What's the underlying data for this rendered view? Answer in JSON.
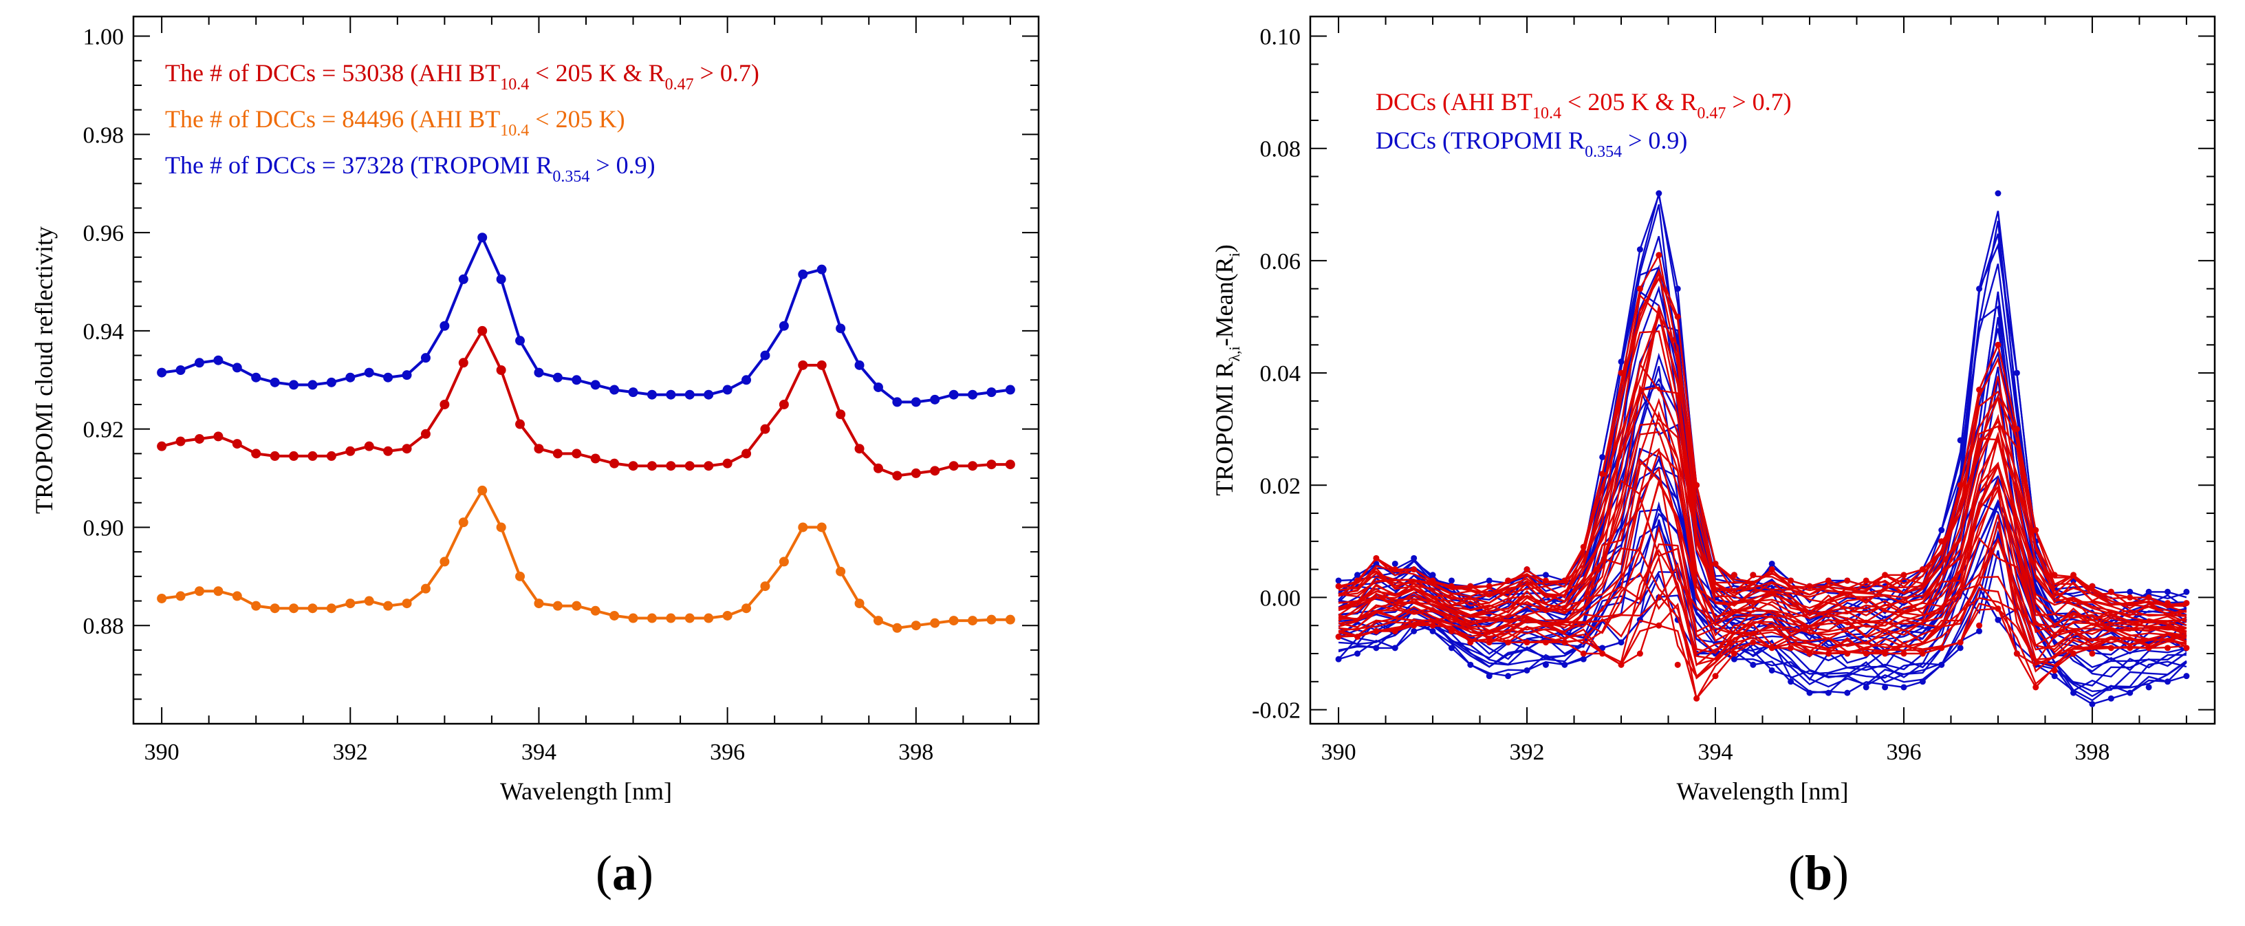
{
  "chart_data": [
    {
      "type": "line",
      "panel_label": "a",
      "xlabel": "Wavelength [nm]",
      "ylabel": "TROPOMI cloud reflectivity",
      "xlim": [
        389.7,
        399.3
      ],
      "ylim": [
        0.86,
        1.004
      ],
      "xticks": [
        "390",
        "392",
        "394",
        "396",
        "398"
      ],
      "yticks": [
        "0.88",
        "0.90",
        "0.92",
        "0.94",
        "0.96",
        "0.98",
        "1.00"
      ],
      "x": [
        390.0,
        390.2,
        390.4,
        390.6,
        390.8,
        391.0,
        391.2,
        391.4,
        391.6,
        391.8,
        392.0,
        392.2,
        392.4,
        392.6,
        392.8,
        393.0,
        393.2,
        393.4,
        393.6,
        393.8,
        394.0,
        394.2,
        394.4,
        394.6,
        394.8,
        395.0,
        395.2,
        395.4,
        395.6,
        395.8,
        396.0,
        396.2,
        396.4,
        396.6,
        396.8,
        397.0,
        397.2,
        397.4,
        397.6,
        397.8,
        398.0,
        398.2,
        398.4,
        398.6,
        398.8,
        399.0
      ],
      "series": [
        {
          "name": "TROPOMI R0.354 > 0.9",
          "color": "#0a0ac8",
          "values": [
            0.9315,
            0.932,
            0.9335,
            0.934,
            0.9325,
            0.9305,
            0.9295,
            0.929,
            0.929,
            0.9295,
            0.9305,
            0.9315,
            0.9305,
            0.931,
            0.9345,
            0.941,
            0.9505,
            0.959,
            0.9505,
            0.938,
            0.9315,
            0.9305,
            0.93,
            0.929,
            0.928,
            0.9275,
            0.927,
            0.927,
            0.927,
            0.927,
            0.928,
            0.93,
            0.935,
            0.941,
            0.9515,
            0.9525,
            0.9405,
            0.933,
            0.9285,
            0.9255,
            0.9255,
            0.926,
            0.927,
            0.927,
            0.9275,
            0.928
          ]
        },
        {
          "name": "AHI BT10.4 < 205 K & R0.47 > 0.7",
          "color": "#cc0000",
          "values": [
            0.9165,
            0.9175,
            0.918,
            0.9185,
            0.917,
            0.915,
            0.9145,
            0.9145,
            0.9145,
            0.9145,
            0.9155,
            0.9165,
            0.9155,
            0.916,
            0.919,
            0.925,
            0.9335,
            0.94,
            0.932,
            0.921,
            0.916,
            0.915,
            0.915,
            0.914,
            0.913,
            0.9125,
            0.9125,
            0.9125,
            0.9125,
            0.9125,
            0.913,
            0.915,
            0.92,
            0.925,
            0.933,
            0.933,
            0.923,
            0.916,
            0.912,
            0.9105,
            0.911,
            0.9115,
            0.9125,
            0.9125,
            0.9128,
            0.9128
          ]
        },
        {
          "name": "AHI BT10.4 < 205 K",
          "color": "#ef6c0a",
          "values": [
            0.8855,
            0.886,
            0.887,
            0.887,
            0.886,
            0.884,
            0.8835,
            0.8835,
            0.8835,
            0.8835,
            0.8845,
            0.885,
            0.884,
            0.8845,
            0.8875,
            0.893,
            0.901,
            0.9075,
            0.9,
            0.89,
            0.8845,
            0.884,
            0.884,
            0.883,
            0.882,
            0.8815,
            0.8815,
            0.8815,
            0.8815,
            0.8815,
            0.882,
            0.8835,
            0.888,
            0.893,
            0.9,
            0.9,
            0.891,
            0.8845,
            0.881,
            0.8795,
            0.88,
            0.8805,
            0.881,
            0.881,
            0.8812,
            0.8812
          ]
        }
      ],
      "legend": [
        {
          "text": "The # of DCCs = 53038 (AHI BT",
          "sub1": "10.4",
          "mid": " < 205 K & R",
          "sub2": "0.47",
          "end": " > 0.7)",
          "color": "#cc0000"
        },
        {
          "text": "The # of DCCs = 84496 (AHI BT",
          "sub1": "10.4",
          "mid": " < 205 K)",
          "sub2": "",
          "end": "",
          "color": "#ef6c0a"
        },
        {
          "text": "The # of DCCs = 37328 (TROPOMI R",
          "sub1": "0.354",
          "mid": " > 0.9)",
          "sub2": "",
          "end": "",
          "color": "#0a0ac8"
        }
      ],
      "legend_position": "top-left"
    },
    {
      "type": "line",
      "panel_label": "b",
      "xlabel": "Wavelength [nm]",
      "ylabel_main": "TROPOMI R",
      "ylabel_sub": "λ,i",
      "ylabel_mid": "-Mean(R",
      "ylabel_sub2": "i",
      "ylabel_end": ")",
      "xlim": [
        389.7,
        399.3
      ],
      "ylim": [
        -0.0225,
        0.1035
      ],
      "xticks": [
        "390",
        "392",
        "394",
        "396",
        "398"
      ],
      "yticks": [
        "-0.02",
        "0.00",
        "0.02",
        "0.04",
        "0.06",
        "0.08",
        "0.10"
      ],
      "x": [
        390.0,
        390.2,
        390.4,
        390.6,
        390.8,
        391.0,
        391.2,
        391.4,
        391.6,
        391.8,
        392.0,
        392.2,
        392.4,
        392.6,
        392.8,
        393.0,
        393.2,
        393.4,
        393.6,
        393.8,
        394.0,
        394.2,
        394.4,
        394.6,
        394.8,
        395.0,
        395.2,
        395.4,
        395.6,
        395.8,
        396.0,
        396.2,
        396.4,
        396.6,
        396.8,
        397.0,
        397.2,
        397.4,
        397.6,
        397.8,
        398.0,
        398.2,
        398.4,
        398.6,
        398.8,
        399.0
      ],
      "series": [
        {
          "name": "DCCs (TROPOMI R0.354 > 0.9)",
          "color": "#0a0ac8",
          "mode": "envelope",
          "upper": [
            0.003,
            0.004,
            0.006,
            0.006,
            0.007,
            0.004,
            0.003,
            0.002,
            0.003,
            0.003,
            0.005,
            0.004,
            0.003,
            0.008,
            0.025,
            0.042,
            0.062,
            0.072,
            0.055,
            0.02,
            0.006,
            0.004,
            0.004,
            0.006,
            0.003,
            0.002,
            0.003,
            0.003,
            0.002,
            0.002,
            0.003,
            0.005,
            0.012,
            0.028,
            0.055,
            0.072,
            0.04,
            0.01,
            0.002,
            0.003,
            0.002,
            0.001,
            0.001,
            0.001,
            0.001,
            0.001
          ],
          "lower": [
            -0.011,
            -0.01,
            -0.009,
            -0.009,
            -0.006,
            -0.006,
            -0.009,
            -0.012,
            -0.014,
            -0.014,
            -0.013,
            -0.012,
            -0.012,
            -0.011,
            -0.009,
            -0.008,
            -0.004,
            0.0,
            -0.004,
            -0.01,
            -0.01,
            -0.011,
            -0.012,
            -0.013,
            -0.015,
            -0.017,
            -0.017,
            -0.017,
            -0.016,
            -0.016,
            -0.016,
            -0.015,
            -0.012,
            -0.009,
            -0.006,
            -0.004,
            -0.01,
            -0.012,
            -0.014,
            -0.017,
            -0.019,
            -0.018,
            -0.017,
            -0.016,
            -0.015,
            -0.014
          ]
        },
        {
          "name": "DCCs (AHI BT10.4 < 205 K & R0.47 > 0.7)",
          "color": "#dd0000",
          "mode": "envelope",
          "upper": [
            0.002,
            0.003,
            0.007,
            0.005,
            0.005,
            0.003,
            0.002,
            0.002,
            0.002,
            0.003,
            0.005,
            0.003,
            0.003,
            0.009,
            0.022,
            0.04,
            0.055,
            0.061,
            0.05,
            0.02,
            0.006,
            0.004,
            0.004,
            0.005,
            0.003,
            0.002,
            0.003,
            0.003,
            0.003,
            0.004,
            0.004,
            0.005,
            0.01,
            0.02,
            0.037,
            0.045,
            0.03,
            0.012,
            0.004,
            0.004,
            0.002,
            0.001,
            0.0,
            0.0,
            -0.001,
            -0.001
          ],
          "lower": [
            -0.007,
            -0.007,
            -0.006,
            -0.006,
            -0.005,
            -0.005,
            -0.006,
            -0.008,
            -0.008,
            -0.008,
            -0.008,
            -0.008,
            -0.008,
            -0.01,
            -0.01,
            -0.012,
            -0.01,
            -0.005,
            -0.012,
            -0.018,
            -0.014,
            -0.01,
            -0.008,
            -0.009,
            -0.009,
            -0.01,
            -0.01,
            -0.01,
            -0.01,
            -0.01,
            -0.01,
            -0.01,
            -0.009,
            -0.008,
            -0.005,
            -0.002,
            -0.01,
            -0.016,
            -0.013,
            -0.01,
            -0.01,
            -0.009,
            -0.009,
            -0.009,
            -0.009,
            -0.009
          ]
        }
      ],
      "legend": [
        {
          "text": "DCCs (AHI BT",
          "sub1": "10.4",
          "mid": " < 205 K & R",
          "sub2": "0.47",
          "end": " > 0.7)",
          "color": "#dd0000"
        },
        {
          "text": "DCCs (TROPOMI R",
          "sub1": "0.354",
          "mid": " > 0.9)",
          "sub2": "",
          "end": "",
          "color": "#0a0ac8"
        }
      ],
      "legend_position": "top-left"
    }
  ],
  "captions": [
    "a",
    "b"
  ]
}
